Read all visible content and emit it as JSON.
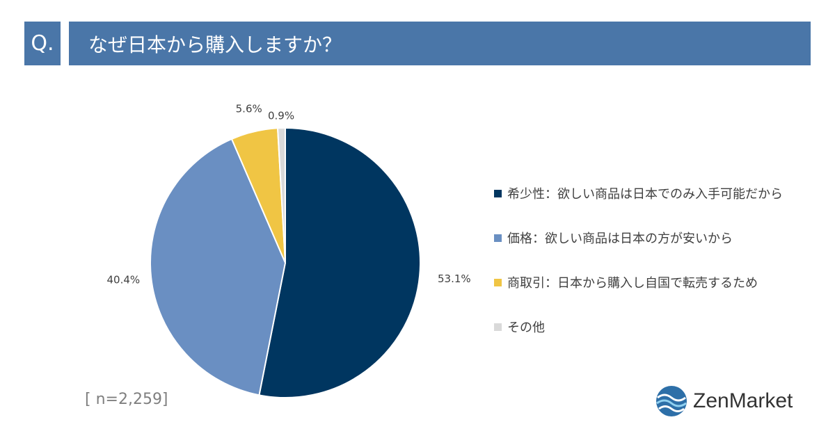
{
  "header": {
    "q_label": "Q.",
    "question": "なぜ日本から購入しますか？"
  },
  "chart_data": {
    "type": "pie",
    "title": "なぜ日本から購入しますか？",
    "categories": [
      "希少性：欲しい商品は日本でのみ入手可能だから",
      "価格：欲しい商品は日本の方が安いから",
      "商取引：日本から購入し自国で転売するため",
      "その他"
    ],
    "values": [
      53.1,
      40.4,
      5.6,
      0.9
    ],
    "value_labels": [
      "53.1%",
      "40.4%",
      "5.6%",
      "0.9%"
    ],
    "colors": [
      "#003660",
      "#6a8fc2",
      "#f0c544",
      "#d9d9d9"
    ],
    "legend_position": "right"
  },
  "footer": {
    "sample_size": "[ n=2,259]",
    "brand": "ZenMarket"
  }
}
